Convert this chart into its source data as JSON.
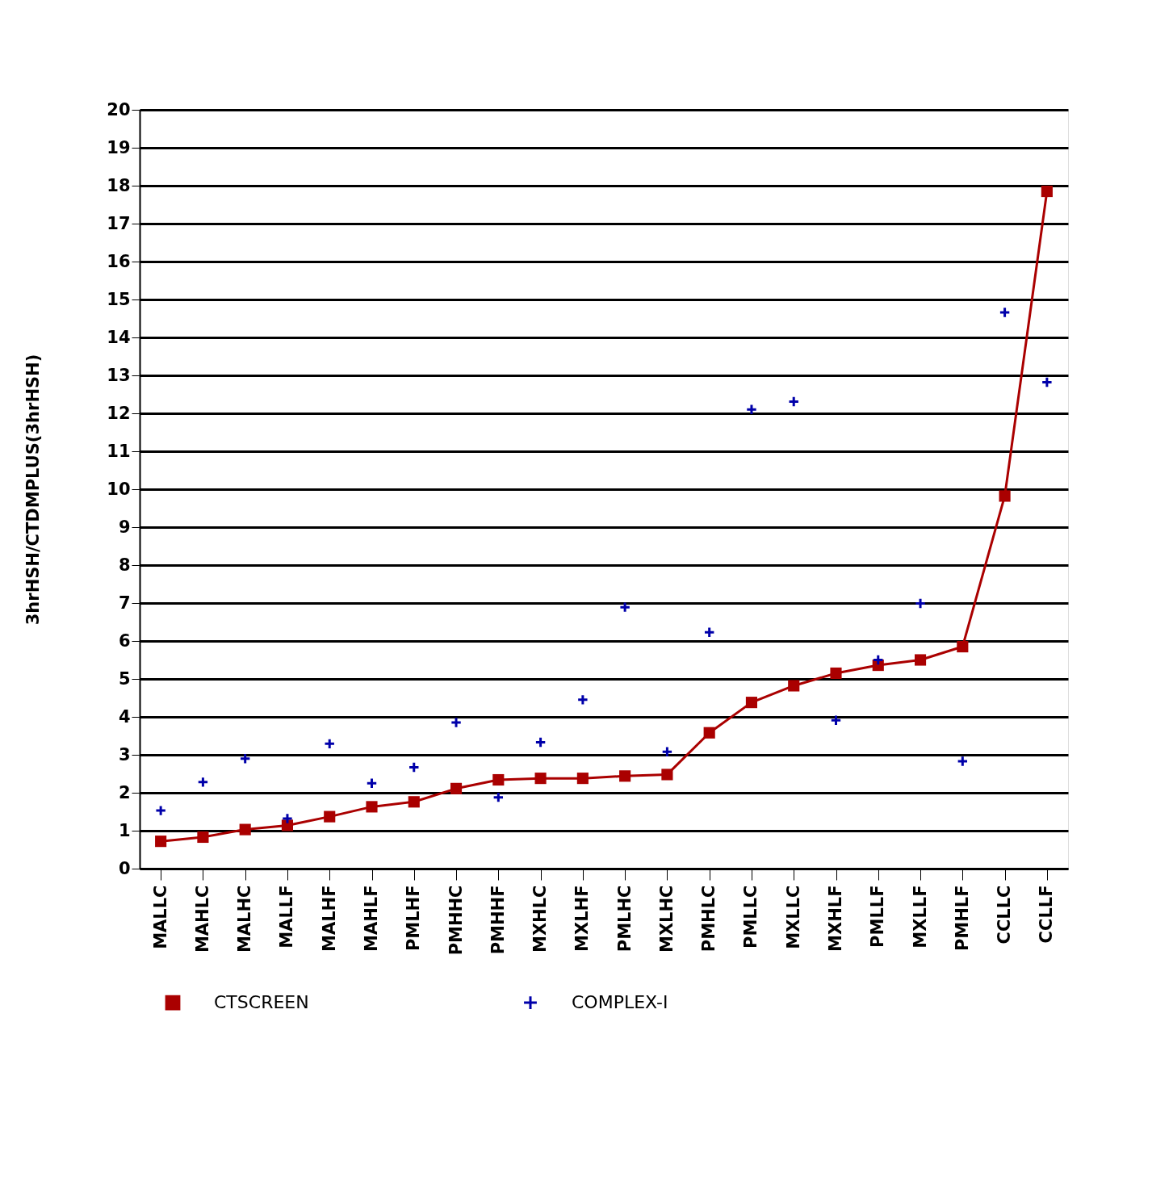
{
  "chart_data": {
    "type": "line",
    "ylabel": "3hrHSH/CTDMPLUS(3hrHSH)",
    "categories": [
      "MALLC",
      "MAHLC",
      "MALHC",
      "MALLF",
      "MALHF",
      "MAHLF",
      "PMLHF",
      "PMHHC",
      "PMHHF",
      "MXHLC",
      "MXLHF",
      "PMLHC",
      "MXLHC",
      "PMHLC",
      "PMLLC",
      "MXLLC",
      "MXHLF",
      "PMLLF",
      "MXLLF",
      "PMHLF",
      "CCLLC",
      "CCLLF"
    ],
    "series": [
      {
        "name": "CTSCREEN",
        "marker": "square",
        "color": "#aa0000",
        "values": [
          0.72,
          0.83,
          1.03,
          1.14,
          1.37,
          1.63,
          1.76,
          2.11,
          2.34,
          2.38,
          2.38,
          2.44,
          2.48,
          3.58,
          4.38,
          4.82,
          5.15,
          5.36,
          5.5,
          5.85,
          9.82,
          17.85
        ]
      },
      {
        "name": "COMPLEX-I",
        "type": "scatter",
        "marker": "cross",
        "color": "#0000aa",
        "values": [
          1.53,
          2.28,
          2.9,
          1.32,
          3.29,
          2.25,
          2.67,
          3.85,
          1.88,
          3.33,
          4.45,
          6.89,
          3.08,
          6.23,
          12.1,
          12.31,
          3.91,
          5.5,
          6.99,
          2.83,
          14.66,
          12.82
        ]
      }
    ],
    "ylim": [
      0,
      20
    ],
    "yticks": [
      0,
      1,
      2,
      3,
      4,
      5,
      6,
      7,
      8,
      9,
      10,
      11,
      12,
      13,
      14,
      15,
      16,
      17,
      18,
      19,
      20
    ],
    "grid": "y",
    "legend": "bottom"
  }
}
